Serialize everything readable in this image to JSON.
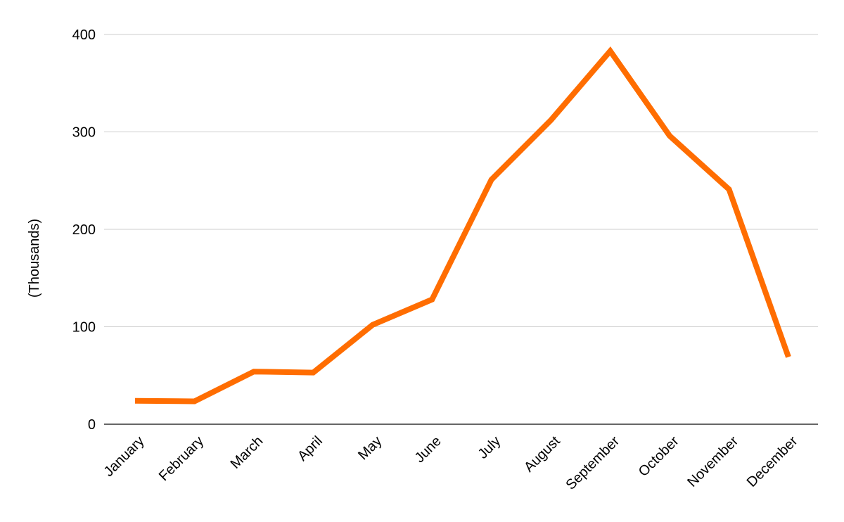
{
  "chart_data": {
    "type": "line",
    "title": "",
    "xlabel": "",
    "ylabel": "(Thousands)",
    "categories": [
      "January",
      "February",
      "March",
      "April",
      "May",
      "June",
      "July",
      "August",
      "September",
      "October",
      "November",
      "December"
    ],
    "series": [
      {
        "values": [
          24,
          23.5,
          54,
          53,
          102,
          128,
          251,
          312,
          383,
          296,
          241,
          69
        ],
        "color": "#ff6d01"
      }
    ],
    "ylim": [
      0,
      400
    ],
    "yticks": [
      0,
      100,
      200,
      300,
      400
    ],
    "grid": true,
    "legend": "none"
  }
}
